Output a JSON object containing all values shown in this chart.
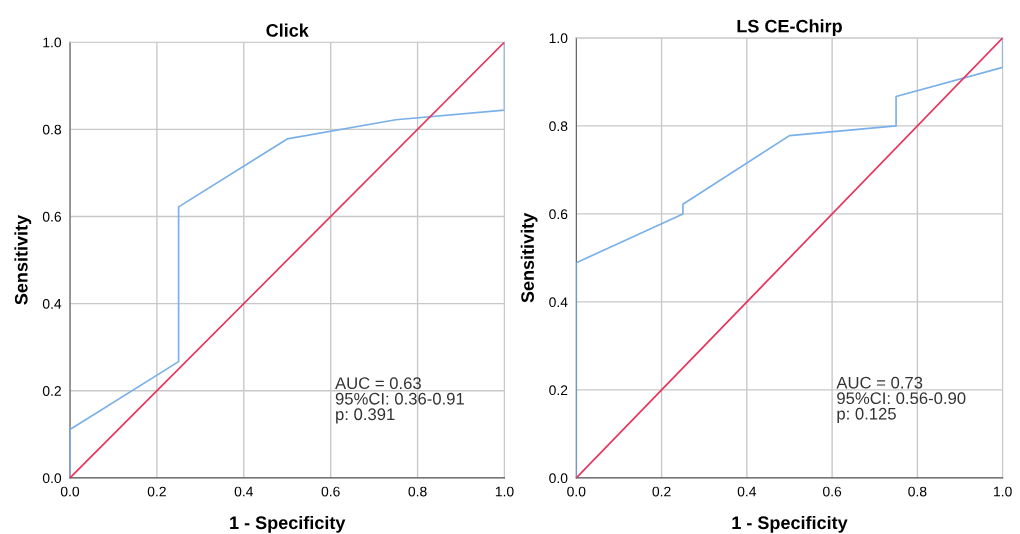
{
  "chart_data": [
    {
      "type": "line",
      "title": "Click",
      "xlabel": "1 - Specificity",
      "ylabel": "Sensitivity",
      "xlim": [
        0,
        1
      ],
      "ylim": [
        0,
        1
      ],
      "xticks": [
        {
          "value": 0,
          "label": "0.0"
        },
        {
          "value": 0.2,
          "label": "0.2"
        },
        {
          "value": 0.4,
          "label": "0.4"
        },
        {
          "value": 0.6,
          "label": "0.6"
        },
        {
          "value": 0.8,
          "label": "0.8"
        },
        {
          "value": 1,
          "label": "1.0"
        }
      ],
      "yticks": [
        {
          "value": 0,
          "label": "0.0"
        },
        {
          "value": 0.2,
          "label": "0.2"
        },
        {
          "value": 0.4,
          "label": "0.4"
        },
        {
          "value": 0.6,
          "label": "0.6"
        },
        {
          "value": 0.8,
          "label": "0.8"
        },
        {
          "value": 1,
          "label": "1.0"
        }
      ],
      "grid": true,
      "series": [
        {
          "color": "#7ab0ea",
          "x": [
            0,
            0,
            0.25,
            0.25,
            0.5,
            0.75,
            1,
            1
          ],
          "values": [
            0,
            0.111,
            0.267,
            0.622,
            0.778,
            0.822,
            0.844,
            1
          ]
        },
        {
          "color": "#e8315c",
          "x": [
            0,
            1
          ],
          "values": [
            0,
            1
          ]
        }
      ],
      "annotations": [
        "AUC = 0.63\n95%CI: 0.36-0.91\np: 0.391"
      ]
    },
    {
      "type": "line",
      "title": "LS CE-Chirp",
      "xlabel": "1 - Specificity",
      "ylabel": "Sensitivity",
      "xlim": [
        0,
        1
      ],
      "ylim": [
        0,
        1
      ],
      "xticks": [
        {
          "value": 0,
          "label": "0.0"
        },
        {
          "value": 0.2,
          "label": "0.2"
        },
        {
          "value": 0.4,
          "label": "0.4"
        },
        {
          "value": 0.6,
          "label": "0.6"
        },
        {
          "value": 0.8,
          "label": "0.8"
        },
        {
          "value": 1,
          "label": "1.0"
        }
      ],
      "yticks": [
        {
          "value": 0,
          "label": "0.0"
        },
        {
          "value": 0.2,
          "label": "0.2"
        },
        {
          "value": 0.4,
          "label": "0.4"
        },
        {
          "value": 0.6,
          "label": "0.6"
        },
        {
          "value": 0.8,
          "label": "0.8"
        },
        {
          "value": 1,
          "label": "1.0"
        }
      ],
      "grid": true,
      "series": [
        {
          "color": "#7ab0ea",
          "x": [
            0,
            0,
            0.25,
            0.25,
            0.5,
            0.75,
            0.75,
            1,
            1
          ],
          "values": [
            0,
            0.489,
            0.6,
            0.622,
            0.778,
            0.8,
            0.867,
            0.933,
            1
          ]
        },
        {
          "color": "#e8315c",
          "x": [
            0,
            1
          ],
          "values": [
            0,
            1
          ]
        }
      ],
      "annotations": [
        "AUC = 0.73\n95%CI: 0.56-0.90\np: 0.125"
      ]
    }
  ]
}
